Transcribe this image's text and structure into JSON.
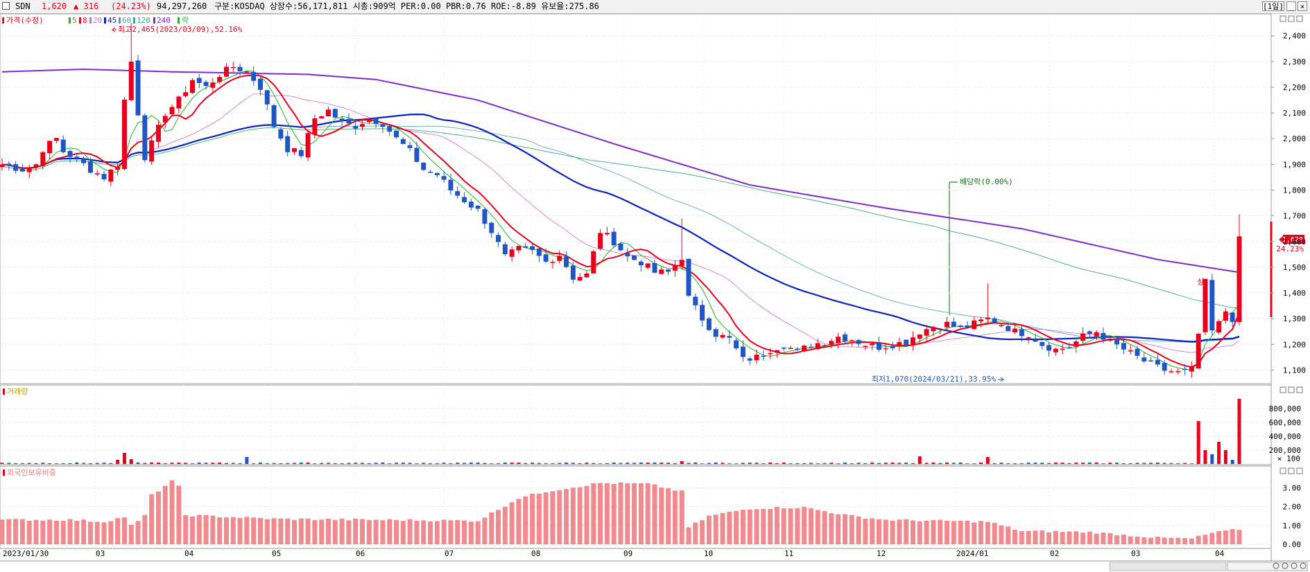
{
  "header": {
    "ticker": "SDN",
    "price": "1,620",
    "change": "▲ 316",
    "change_pct": "(24.23%)",
    "volume": "94,297,260",
    "info": "구분:KOSDAQ 상장수:56,171,811 시총:909억 PER:0.00 PBR:0.76 ROE:-8.89 유보율:275.86",
    "period_button": "[1일]",
    "colors": {
      "up": "#e8001c",
      "down": "#1f56c6",
      "text": "#000000"
    }
  },
  "legend": {
    "price_label": "가격(수정)",
    "ma_items": [
      {
        "label": "5",
        "color": "#21b321"
      },
      {
        "label": "8",
        "color": "#e8001c"
      },
      {
        "label": "20",
        "color": "#c86cc8"
      },
      {
        "label": "45",
        "color": "#0b21b8"
      },
      {
        "label": "60",
        "color": "#4d9bb8"
      },
      {
        "label": "120",
        "color": "#3aa87a"
      },
      {
        "label": "240",
        "color": "#7d2bc9"
      }
    ],
    "extra_label": "락"
  },
  "annotations": {
    "high": "최고2,465(2023/03/09),52.16%",
    "low": "최저1,070(2024/03/21),33.95%",
    "dividend": "배당락(0.00%)",
    "marker": "상"
  },
  "current_price_tag": {
    "price": "1,620",
    "pct": "24.23%"
  },
  "volume_panel": {
    "title": "거래량",
    "scale_note": "× 100"
  },
  "foreign_panel": {
    "title": "외국인보유비중"
  },
  "chart_data": [
    {
      "type": "candlestick",
      "title": "SDN",
      "x_ticks": [
        "2023/01/30",
        "03",
        "04",
        "05",
        "06",
        "07",
        "08",
        "09",
        "10",
        "11",
        "12",
        "2024/01",
        "02",
        "03",
        "04"
      ],
      "ylim": [
        1050,
        2480
      ],
      "y_ticks": [
        1100,
        1200,
        1300,
        1400,
        1500,
        1600,
        1700,
        1800,
        1900,
        2000,
        2100,
        2200,
        2300,
        2400
      ],
      "y_tick_labels": [
        "1,100",
        "1,200",
        "1,300",
        "1,400",
        "1,500",
        "1,600",
        "1,700",
        "1,800",
        "1,900",
        "2,000",
        "2,100",
        "2,200",
        "2,300",
        "2,400"
      ],
      "close_path": [
        [
          0,
          1900
        ],
        [
          3,
          1880
        ],
        [
          5,
          1900
        ],
        [
          6,
          1960
        ],
        [
          8,
          2000
        ],
        [
          9,
          1950
        ],
        [
          11,
          1920
        ],
        [
          13,
          1880
        ],
        [
          15,
          1850
        ],
        [
          17,
          1900
        ],
        [
          18,
          2150
        ],
        [
          19,
          2300
        ],
        [
          20,
          2100
        ],
        [
          21,
          1930
        ],
        [
          22,
          1980
        ],
        [
          24,
          2100
        ],
        [
          26,
          2150
        ],
        [
          28,
          2230
        ],
        [
          30,
          2200
        ],
        [
          32,
          2250
        ],
        [
          34,
          2280
        ],
        [
          36,
          2260
        ],
        [
          38,
          2200
        ],
        [
          40,
          2050
        ],
        [
          42,
          1960
        ],
        [
          44,
          1940
        ],
        [
          46,
          2080
        ],
        [
          48,
          2110
        ],
        [
          50,
          2060
        ],
        [
          52,
          2050
        ],
        [
          54,
          2080
        ],
        [
          56,
          2060
        ],
        [
          58,
          2000
        ],
        [
          60,
          1950
        ],
        [
          62,
          1880
        ],
        [
          64,
          1860
        ],
        [
          66,
          1800
        ],
        [
          68,
          1760
        ],
        [
          70,
          1720
        ],
        [
          72,
          1640
        ],
        [
          74,
          1540
        ],
        [
          76,
          1570
        ],
        [
          78,
          1560
        ],
        [
          80,
          1520
        ],
        [
          82,
          1550
        ],
        [
          84,
          1460
        ],
        [
          86,
          1470
        ],
        [
          88,
          1640
        ],
        [
          90,
          1600
        ],
        [
          92,
          1540
        ],
        [
          94,
          1520
        ],
        [
          96,
          1480
        ],
        [
          98,
          1480
        ],
        [
          100,
          1540
        ],
        [
          101,
          1380
        ],
        [
          103,
          1300
        ],
        [
          105,
          1240
        ],
        [
          107,
          1220
        ],
        [
          109,
          1140
        ],
        [
          111,
          1150
        ],
        [
          113,
          1180
        ],
        [
          115,
          1200
        ],
        [
          117,
          1170
        ],
        [
          119,
          1200
        ],
        [
          121,
          1210
        ],
        [
          123,
          1230
        ],
        [
          125,
          1220
        ],
        [
          127,
          1200
        ],
        [
          129,
          1190
        ],
        [
          131,
          1200
        ],
        [
          133,
          1210
        ],
        [
          135,
          1250
        ],
        [
          137,
          1270
        ],
        [
          139,
          1280
        ],
        [
          141,
          1260
        ],
        [
          143,
          1280
        ],
        [
          145,
          1300
        ],
        [
          147,
          1280
        ],
        [
          149,
          1250
        ],
        [
          151,
          1240
        ],
        [
          153,
          1200
        ],
        [
          155,
          1180
        ],
        [
          157,
          1190
        ],
        [
          159,
          1230
        ],
        [
          161,
          1250
        ],
        [
          163,
          1210
        ],
        [
          165,
          1180
        ],
        [
          167,
          1150
        ],
        [
          169,
          1120
        ],
        [
          171,
          1100
        ],
        [
          173,
          1090
        ],
        [
          175,
          1100
        ],
        [
          176,
          1240
        ],
        [
          177,
          1440
        ],
        [
          178,
          1250
        ],
        [
          179,
          1280
        ],
        [
          180,
          1330
        ],
        [
          181,
          1300
        ],
        [
          182,
          1620
        ]
      ],
      "ma240": [
        [
          0,
          2260
        ],
        [
          12,
          2270
        ],
        [
          25,
          2260
        ],
        [
          45,
          2250
        ],
        [
          55,
          2230
        ],
        [
          70,
          2150
        ],
        [
          90,
          1980
        ],
        [
          110,
          1820
        ],
        [
          130,
          1730
        ],
        [
          150,
          1650
        ],
        [
          170,
          1530
        ],
        [
          182,
          1480
        ]
      ]
    },
    {
      "type": "bar",
      "title": "거래량",
      "y_ticks": [
        200000,
        400000,
        600000,
        800000
      ],
      "y_tick_labels": [
        "200,000",
        "400,000",
        "600,000",
        "800,000"
      ],
      "ylim": [
        0,
        1000000
      ],
      "spikes": [
        [
          17,
          60000
        ],
        [
          18,
          160000
        ],
        [
          19,
          70000
        ],
        [
          26,
          20000
        ],
        [
          36,
          100000
        ],
        [
          100,
          40000
        ],
        [
          135,
          110000
        ],
        [
          145,
          100000
        ],
        [
          176,
          620000
        ],
        [
          177,
          200000
        ],
        [
          178,
          140000
        ],
        [
          179,
          320000
        ],
        [
          180,
          200000
        ],
        [
          181,
          60000
        ],
        [
          182,
          943000
        ]
      ]
    },
    {
      "type": "bar",
      "title": "외국인보유비중",
      "y_ticks": [
        0,
        1,
        2,
        3
      ],
      "y_tick_labels": [
        "0.00",
        "1.00",
        "2.00",
        "3.00"
      ],
      "ylim": [
        0,
        4
      ],
      "path": [
        [
          0,
          1.3
        ],
        [
          10,
          1.3
        ],
        [
          15,
          1.2
        ],
        [
          18,
          1.45
        ],
        [
          19,
          1.0
        ],
        [
          20,
          1.2
        ],
        [
          21,
          1.55
        ],
        [
          22,
          2.6
        ],
        [
          25,
          3.35
        ],
        [
          26,
          3.05
        ],
        [
          27,
          1.55
        ],
        [
          40,
          1.35
        ],
        [
          55,
          1.3
        ],
        [
          70,
          1.25
        ],
        [
          74,
          2.05
        ],
        [
          76,
          2.45
        ],
        [
          80,
          2.8
        ],
        [
          88,
          3.25
        ],
        [
          95,
          3.2
        ],
        [
          100,
          2.8
        ],
        [
          101,
          0.9
        ],
        [
          104,
          1.5
        ],
        [
          110,
          1.9
        ],
        [
          115,
          1.95
        ],
        [
          118,
          1.95
        ],
        [
          125,
          1.5
        ],
        [
          130,
          1.3
        ],
        [
          145,
          1.2
        ],
        [
          150,
          0.7
        ],
        [
          160,
          0.65
        ],
        [
          170,
          0.35
        ],
        [
          175,
          0.3
        ],
        [
          178,
          0.6
        ],
        [
          182,
          0.8
        ]
      ]
    }
  ]
}
